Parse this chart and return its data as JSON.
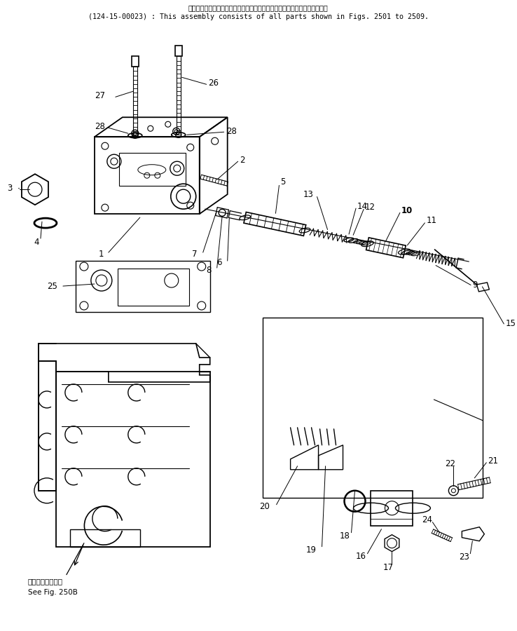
{
  "title_jp": "このアセンブリの構成部品は第２５０１図から第２５０９図まで含みます．",
  "title_en": "(124-15-00023) : This assembly consists of all parts shown in Figs. 2501 to 2509.",
  "bg_color": "#ffffff",
  "lc": "#000000",
  "fig_note_jp": "第２５０８図参照",
  "fig_note_en": "See Fig. 250B"
}
